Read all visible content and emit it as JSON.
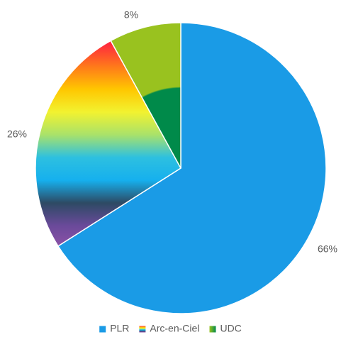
{
  "chart_data": {
    "type": "pie",
    "title": "",
    "slices": [
      {
        "name": "PLR",
        "value": 66,
        "label": "66%",
        "colors": [
          "#1a9be6"
        ]
      },
      {
        "name": "Arc-en-Ciel",
        "value": 26,
        "label": "26%",
        "colors": [
          "#ff2a3d",
          "#ff7a1a",
          "#ffc700",
          "#f2f230",
          "#a9e26a",
          "#2dc0e0",
          "#16b0ee",
          "#2d4a64",
          "#6a4a9a",
          "#8e52a8"
        ]
      },
      {
        "name": "UDC",
        "value": 8,
        "label": "8%",
        "colors": [
          "#99c21f",
          "#008a4a"
        ]
      }
    ],
    "legend": {
      "position": "bottom",
      "entries": [
        "PLR",
        "Arc-en-Ciel",
        "UDC"
      ]
    }
  }
}
